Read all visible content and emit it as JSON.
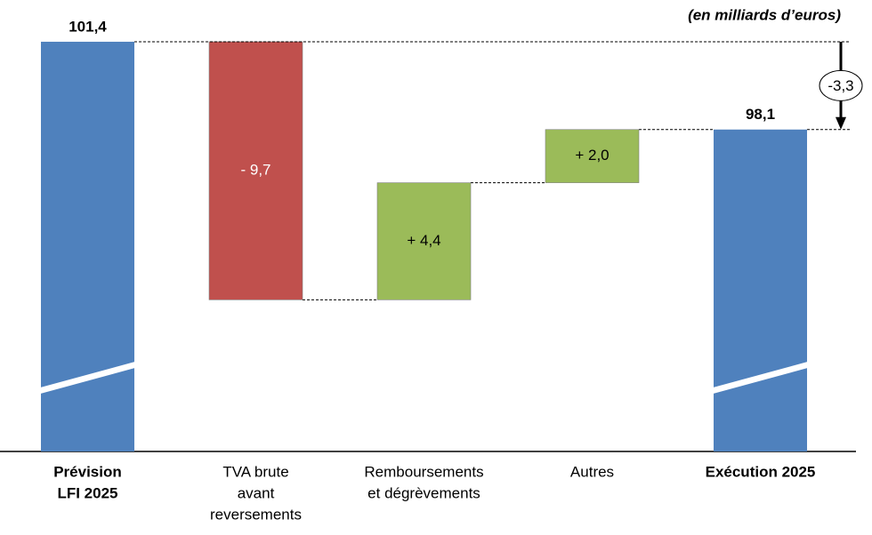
{
  "chart_data": {
    "type": "waterfall",
    "subtitle": "(en milliards d’euros)",
    "categories": [
      [
        "Prévision",
        "LFI 2025"
      ],
      [
        "TVA brute",
        "avant",
        "reversements"
      ],
      [
        "Remboursements",
        "et dégrèvements"
      ],
      [
        "Autres"
      ],
      [
        "Exécution 2025"
      ]
    ],
    "measure": [
      "total",
      "relative",
      "relative",
      "relative",
      "total"
    ],
    "values": [
      101.4,
      -9.7,
      4.4,
      2.0,
      98.1
    ],
    "value_labels": [
      "101,4",
      "- 9,7",
      "+ 4,4",
      "+ 2,0",
      "98,1"
    ],
    "colors": [
      "#4f81bd",
      "#c0504d",
      "#9bbb59",
      "#9bbb59",
      "#4f81bd"
    ],
    "ylim": [
      86,
      102
    ],
    "annotation": {
      "value": -3.3,
      "label": "-3,3"
    }
  }
}
